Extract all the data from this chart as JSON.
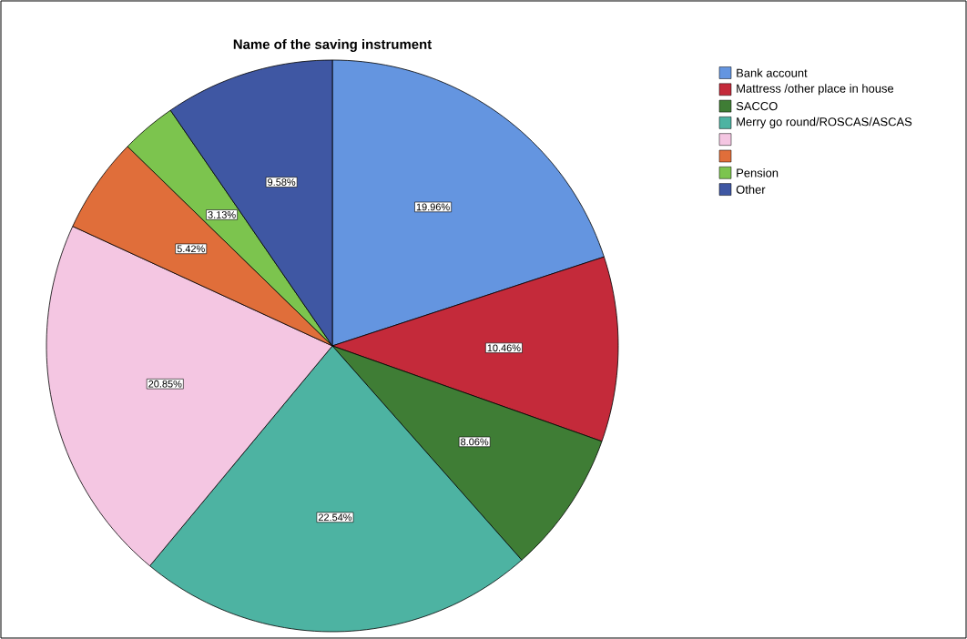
{
  "chart_data": {
    "type": "pie",
    "title": "Name of the saving instrument",
    "categories": [
      "Bank account",
      "Mattress /other place in house",
      "SACCO",
      "Merry go round/ROSCAS/ASCAS",
      null,
      null,
      "Pension",
      "Other"
    ],
    "values": [
      19.96,
      10.46,
      8.06,
      22.54,
      20.85,
      5.42,
      3.13,
      9.58
    ],
    "value_labels": [
      "19.96%",
      "10.46%",
      "8.06%",
      "22.54%",
      "20.85%",
      "5.42%",
      "3.13%",
      "9.58%"
    ],
    "colors": [
      "#6495e0",
      "#c42a3a",
      "#3f7d35",
      "#4db3a2",
      "#f4c6e2",
      "#e06e3a",
      "#7cc44e",
      "#3f57a3"
    ],
    "legend": "right"
  }
}
